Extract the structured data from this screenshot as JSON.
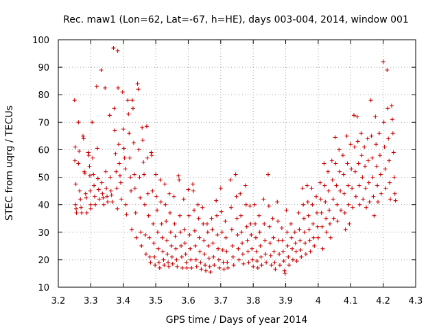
{
  "chart_data": {
    "type": "scatter",
    "title": "Rec. maw1 (Lon=62, Lat=-67, h=HE), days 003-004, 2014, window 001",
    "xlabel": "GPS time / Days of year 2014",
    "ylabel": "STEC from uqrg / TECUs",
    "xlim": [
      3.2,
      4.3
    ],
    "ylim": [
      10,
      100
    ],
    "xticks": [
      3.2,
      3.3,
      3.4,
      3.5,
      3.6,
      3.7,
      3.8,
      3.9,
      4.0,
      4.1,
      4.2,
      4.3
    ],
    "xtick_labels": [
      "3.2",
      "3.3",
      "3.4",
      "3.5",
      "3.6",
      "3.7",
      "3.8",
      "3.9",
      "4",
      "4.1",
      "4.2",
      "4.3"
    ],
    "yticks": [
      10,
      20,
      30,
      40,
      50,
      60,
      70,
      80,
      90,
      100
    ],
    "ytick_labels": [
      "10",
      "20",
      "30",
      "40",
      "50",
      "60",
      "70",
      "80",
      "90",
      "100"
    ],
    "grid": true,
    "marker": "plus",
    "color": "#cc0000",
    "points": [
      [
        3.25,
        78.0
      ],
      [
        3.252,
        61.0
      ],
      [
        3.251,
        56.0
      ],
      [
        3.254,
        47.5
      ],
      [
        3.253,
        40.0
      ],
      [
        3.255,
        38.5
      ],
      [
        3.256,
        37.0
      ],
      [
        3.262,
        70.0
      ],
      [
        3.264,
        59.5
      ],
      [
        3.262,
        55.0
      ],
      [
        3.266,
        45.0
      ],
      [
        3.268,
        42.0
      ],
      [
        3.27,
        39.0
      ],
      [
        3.272,
        37.0
      ],
      [
        3.276,
        65.0
      ],
      [
        3.278,
        64.0
      ],
      [
        3.28,
        52.0
      ],
      [
        3.282,
        51.5
      ],
      [
        3.284,
        44.0
      ],
      [
        3.286,
        42.5
      ],
      [
        3.288,
        37.0
      ],
      [
        3.292,
        59.0
      ],
      [
        3.294,
        58.0
      ],
      [
        3.296,
        54.0
      ],
      [
        3.297,
        50.5
      ],
      [
        3.298,
        45.0
      ],
      [
        3.3,
        40.0
      ],
      [
        3.3,
        38.5
      ],
      [
        3.304,
        70.0
      ],
      [
        3.306,
        57.0
      ],
      [
        3.308,
        51.0
      ],
      [
        3.31,
        47.0
      ],
      [
        3.312,
        43.0
      ],
      [
        3.314,
        40.0
      ],
      [
        3.318,
        83.0
      ],
      [
        3.32,
        60.5
      ],
      [
        3.322,
        49.5
      ],
      [
        3.324,
        45.5
      ],
      [
        3.326,
        42.0
      ],
      [
        3.332,
        89.0
      ],
      [
        3.334,
        48.0
      ],
      [
        3.336,
        44.0
      ],
      [
        3.338,
        42.5
      ],
      [
        3.34,
        40.0
      ],
      [
        3.344,
        82.5
      ],
      [
        3.346,
        52.0
      ],
      [
        3.348,
        46.0
      ],
      [
        3.35,
        43.0
      ],
      [
        3.352,
        41.0
      ],
      [
        3.358,
        72.5
      ],
      [
        3.36,
        50.0
      ],
      [
        3.362,
        45.0
      ],
      [
        3.364,
        43.5
      ],
      [
        3.366,
        41.0
      ],
      [
        3.37,
        97.0
      ],
      [
        3.372,
        75.0
      ],
      [
        3.374,
        67.0
      ],
      [
        3.376,
        58.5
      ],
      [
        3.378,
        52.0
      ],
      [
        3.38,
        46.0
      ],
      [
        3.382,
        38.5
      ],
      [
        3.383,
        96.0
      ],
      [
        3.384,
        82.5
      ],
      [
        3.386,
        62.0
      ],
      [
        3.388,
        55.0
      ],
      [
        3.39,
        50.5
      ],
      [
        3.392,
        48.0
      ],
      [
        3.394,
        42.0
      ],
      [
        3.398,
        81.0
      ],
      [
        3.4,
        67.5
      ],
      [
        3.402,
        60.5
      ],
      [
        3.404,
        57.0
      ],
      [
        3.406,
        53.0
      ],
      [
        3.408,
        40.0
      ],
      [
        3.41,
        36.5
      ],
      [
        3.414,
        78.0
      ],
      [
        3.416,
        73.0
      ],
      [
        3.418,
        66.0
      ],
      [
        3.42,
        57.0
      ],
      [
        3.422,
        50.0
      ],
      [
        3.424,
        45.0
      ],
      [
        3.426,
        31.0
      ],
      [
        3.428,
        78.0
      ],
      [
        3.43,
        75.0
      ],
      [
        3.432,
        62.5
      ],
      [
        3.434,
        51.0
      ],
      [
        3.436,
        46.0
      ],
      [
        3.438,
        37.0
      ],
      [
        3.44,
        28.0
      ],
      [
        3.444,
        84.0
      ],
      [
        3.446,
        82.0
      ],
      [
        3.448,
        60.0
      ],
      [
        3.45,
        50.0
      ],
      [
        3.452,
        42.5
      ],
      [
        3.454,
        30.0
      ],
      [
        3.456,
        25.0
      ],
      [
        3.458,
        68.0
      ],
      [
        3.46,
        63.5
      ],
      [
        3.462,
        55.5
      ],
      [
        3.464,
        51.0
      ],
      [
        3.466,
        40.0
      ],
      [
        3.468,
        29.0
      ],
      [
        3.47,
        22.0
      ],
      [
        3.472,
        68.5
      ],
      [
        3.474,
        57.0
      ],
      [
        3.476,
        44.0
      ],
      [
        3.478,
        36.0
      ],
      [
        3.48,
        28.0
      ],
      [
        3.482,
        21.0
      ],
      [
        3.484,
        19.0
      ],
      [
        3.486,
        59.0
      ],
      [
        3.488,
        58.0
      ],
      [
        3.49,
        45.0
      ],
      [
        3.492,
        33.0
      ],
      [
        3.494,
        26.0
      ],
      [
        3.496,
        21.0
      ],
      [
        3.498,
        18.0
      ],
      [
        3.5,
        51.0
      ],
      [
        3.502,
        43.0
      ],
      [
        3.504,
        38.0
      ],
      [
        3.506,
        30.0
      ],
      [
        3.508,
        24.0
      ],
      [
        3.51,
        19.0
      ],
      [
        3.512,
        17.0
      ],
      [
        3.514,
        49.0
      ],
      [
        3.516,
        41.0
      ],
      [
        3.518,
        33.0
      ],
      [
        3.52,
        28.0
      ],
      [
        3.522,
        23.0
      ],
      [
        3.524,
        20.0
      ],
      [
        3.526,
        18.0
      ],
      [
        3.528,
        47.5
      ],
      [
        3.53,
        40.0
      ],
      [
        3.532,
        34.0
      ],
      [
        3.534,
        27.0
      ],
      [
        3.536,
        22.0
      ],
      [
        3.538,
        19.0
      ],
      [
        3.54,
        17.5
      ],
      [
        3.542,
        44.0
      ],
      [
        3.544,
        37.0
      ],
      [
        3.546,
        30.0
      ],
      [
        3.548,
        25.0
      ],
      [
        3.55,
        21.0
      ],
      [
        3.552,
        18.5
      ],
      [
        3.556,
        43.0
      ],
      [
        3.558,
        33.0
      ],
      [
        3.56,
        28.5
      ],
      [
        3.562,
        24.0
      ],
      [
        3.564,
        20.0
      ],
      [
        3.566,
        17.5
      ],
      [
        3.57,
        50.5
      ],
      [
        3.572,
        49.0
      ],
      [
        3.574,
        36.0
      ],
      [
        3.576,
        30.0
      ],
      [
        3.578,
        25.0
      ],
      [
        3.58,
        21.0
      ],
      [
        3.582,
        17.0
      ],
      [
        3.586,
        42.0
      ],
      [
        3.588,
        31.0
      ],
      [
        3.59,
        26.0
      ],
      [
        3.592,
        22.0
      ],
      [
        3.594,
        19.0
      ],
      [
        3.596,
        17.0
      ],
      [
        3.6,
        45.5
      ],
      [
        3.602,
        36.0
      ],
      [
        3.604,
        29.0
      ],
      [
        3.606,
        24.0
      ],
      [
        3.608,
        20.0
      ],
      [
        3.61,
        17.0
      ],
      [
        3.614,
        47.5
      ],
      [
        3.616,
        45.0
      ],
      [
        3.618,
        38.0
      ],
      [
        3.62,
        30.5
      ],
      [
        3.622,
        25.0
      ],
      [
        3.624,
        20.0
      ],
      [
        3.626,
        17.5
      ],
      [
        3.63,
        40.0
      ],
      [
        3.632,
        35.0
      ],
      [
        3.634,
        28.0
      ],
      [
        3.636,
        23.0
      ],
      [
        3.638,
        19.0
      ],
      [
        3.64,
        16.5
      ],
      [
        3.644,
        39.0
      ],
      [
        3.646,
        33.0
      ],
      [
        3.648,
        27.0
      ],
      [
        3.65,
        22.0
      ],
      [
        3.652,
        18.0
      ],
      [
        3.654,
        16.0
      ],
      [
        3.658,
        33.0
      ],
      [
        3.66,
        30.0
      ],
      [
        3.662,
        25.0
      ],
      [
        3.664,
        20.5
      ],
      [
        3.666,
        17.5
      ],
      [
        3.668,
        15.5
      ],
      [
        3.672,
        35.0
      ],
      [
        3.674,
        31.0
      ],
      [
        3.676,
        26.0
      ],
      [
        3.678,
        21.0
      ],
      [
        3.68,
        18.0
      ],
      [
        3.686,
        41.5
      ],
      [
        3.688,
        36.0
      ],
      [
        3.69,
        29.0
      ],
      [
        3.692,
        24.0
      ],
      [
        3.694,
        20.0
      ],
      [
        3.696,
        17.0
      ],
      [
        3.7,
        46.0
      ],
      [
        3.702,
        37.5
      ],
      [
        3.704,
        30.0
      ],
      [
        3.706,
        23.5
      ],
      [
        3.708,
        19.0
      ],
      [
        3.71,
        16.5
      ],
      [
        3.714,
        34.0
      ],
      [
        3.716,
        28.0
      ],
      [
        3.718,
        23.0
      ],
      [
        3.72,
        19.0
      ],
      [
        3.722,
        17.0
      ],
      [
        3.73,
        49.0
      ],
      [
        3.732,
        39.0
      ],
      [
        3.734,
        31.0
      ],
      [
        3.736,
        25.0
      ],
      [
        3.738,
        21.0
      ],
      [
        3.74,
        18.0
      ],
      [
        3.746,
        51.0
      ],
      [
        3.748,
        43.0
      ],
      [
        3.75,
        35.0
      ],
      [
        3.752,
        29.0
      ],
      [
        3.754,
        24.0
      ],
      [
        3.756,
        20.0
      ],
      [
        3.76,
        44.0
      ],
      [
        3.762,
        36.0
      ],
      [
        3.764,
        30.0
      ],
      [
        3.766,
        26.0
      ],
      [
        3.768,
        22.0
      ],
      [
        3.77,
        18.5
      ],
      [
        3.776,
        47.0
      ],
      [
        3.778,
        40.0
      ],
      [
        3.78,
        32.0
      ],
      [
        3.782,
        27.0
      ],
      [
        3.784,
        23.0
      ],
      [
        3.786,
        19.0
      ],
      [
        3.79,
        39.5
      ],
      [
        3.792,
        33.0
      ],
      [
        3.794,
        29.0
      ],
      [
        3.796,
        24.0
      ],
      [
        3.798,
        20.0
      ],
      [
        3.8,
        17.5
      ],
      [
        3.804,
        40.0
      ],
      [
        3.806,
        33.0
      ],
      [
        3.808,
        28.0
      ],
      [
        3.81,
        23.0
      ],
      [
        3.812,
        19.5
      ],
      [
        3.814,
        17.0
      ],
      [
        3.818,
        36.0
      ],
      [
        3.82,
        30.0
      ],
      [
        3.822,
        25.0
      ],
      [
        3.824,
        21.0
      ],
      [
        3.826,
        18.0
      ],
      [
        3.832,
        42.0
      ],
      [
        3.834,
        33.0
      ],
      [
        3.836,
        27.0
      ],
      [
        3.838,
        22.0
      ],
      [
        3.84,
        19.0
      ],
      [
        3.846,
        51.0
      ],
      [
        3.848,
        39.5
      ],
      [
        3.85,
        32.0
      ],
      [
        3.852,
        26.0
      ],
      [
        3.854,
        21.5
      ],
      [
        3.856,
        18.0
      ],
      [
        3.86,
        35.0
      ],
      [
        3.862,
        28.0
      ],
      [
        3.864,
        23.0
      ],
      [
        3.866,
        19.0
      ],
      [
        3.868,
        16.5
      ],
      [
        3.874,
        41.0
      ],
      [
        3.876,
        34.0
      ],
      [
        3.878,
        27.0
      ],
      [
        3.88,
        22.0
      ],
      [
        3.882,
        18.0
      ],
      [
        3.888,
        31.5
      ],
      [
        3.89,
        27.0
      ],
      [
        3.892,
        23.0
      ],
      [
        3.894,
        19.5
      ],
      [
        3.896,
        16.0
      ],
      [
        3.898,
        15.0
      ],
      [
        3.902,
        38.0
      ],
      [
        3.904,
        30.0
      ],
      [
        3.906,
        25.0
      ],
      [
        3.908,
        21.0
      ],
      [
        3.91,
        18.0
      ],
      [
        3.916,
        33.0
      ],
      [
        3.918,
        28.0
      ],
      [
        3.92,
        24.0
      ],
      [
        3.922,
        20.0
      ],
      [
        3.928,
        30.0
      ],
      [
        3.93,
        26.0
      ],
      [
        3.932,
        23.0
      ],
      [
        3.934,
        19.5
      ],
      [
        3.94,
        37.0
      ],
      [
        3.942,
        31.0
      ],
      [
        3.944,
        27.0
      ],
      [
        3.946,
        23.5
      ],
      [
        3.948,
        21.0
      ],
      [
        3.952,
        46.0
      ],
      [
        3.954,
        40.0
      ],
      [
        3.956,
        35.0
      ],
      [
        3.958,
        30.0
      ],
      [
        3.96,
        26.0
      ],
      [
        3.962,
        22.0
      ],
      [
        3.966,
        47.0
      ],
      [
        3.968,
        41.0
      ],
      [
        3.97,
        36.0
      ],
      [
        3.972,
        31.0
      ],
      [
        3.974,
        27.0
      ],
      [
        3.976,
        23.0
      ],
      [
        3.98,
        46.0
      ],
      [
        3.982,
        40.0
      ],
      [
        3.984,
        33.0
      ],
      [
        3.986,
        28.0
      ],
      [
        3.988,
        25.0
      ],
      [
        3.994,
        43.0
      ],
      [
        3.996,
        37.0
      ],
      [
        3.998,
        32.0
      ],
      [
        4.0,
        28.0
      ],
      [
        4.006,
        48.0
      ],
      [
        4.008,
        42.0
      ],
      [
        4.01,
        37.0
      ],
      [
        4.012,
        32.0
      ],
      [
        4.014,
        24.0
      ],
      [
        4.018,
        55.0
      ],
      [
        4.02,
        47.0
      ],
      [
        4.022,
        41.0
      ],
      [
        4.024,
        35.0
      ],
      [
        4.026,
        30.0
      ],
      [
        4.03,
        52.0
      ],
      [
        4.032,
        45.0
      ],
      [
        4.034,
        38.0
      ],
      [
        4.036,
        33.0
      ],
      [
        4.038,
        28.0
      ],
      [
        4.042,
        56.0
      ],
      [
        4.044,
        49.0
      ],
      [
        4.046,
        42.0
      ],
      [
        4.048,
        35.0
      ],
      [
        4.052,
        64.5
      ],
      [
        4.054,
        55.0
      ],
      [
        4.056,
        47.0
      ],
      [
        4.058,
        40.0
      ],
      [
        4.06,
        34.0
      ],
      [
        4.064,
        60.0
      ],
      [
        4.066,
        52.0
      ],
      [
        4.068,
        45.0
      ],
      [
        4.07,
        38.0
      ],
      [
        4.076,
        58.0
      ],
      [
        4.078,
        51.0
      ],
      [
        4.08,
        44.0
      ],
      [
        4.082,
        37.0
      ],
      [
        4.084,
        31.0
      ],
      [
        4.088,
        65.0
      ],
      [
        4.09,
        55.0
      ],
      [
        4.092,
        47.0
      ],
      [
        4.094,
        40.0
      ],
      [
        4.096,
        33.0
      ],
      [
        4.1,
        62.0
      ],
      [
        4.102,
        53.0
      ],
      [
        4.104,
        46.0
      ],
      [
        4.106,
        39.0
      ],
      [
        4.11,
        72.5
      ],
      [
        4.112,
        61.0
      ],
      [
        4.114,
        52.0
      ],
      [
        4.116,
        43.0
      ],
      [
        4.12,
        72.0
      ],
      [
        4.122,
        63.0
      ],
      [
        4.124,
        55.0
      ],
      [
        4.126,
        47.0
      ],
      [
        4.128,
        40.0
      ],
      [
        4.132,
        66.0
      ],
      [
        4.134,
        58.0
      ],
      [
        4.136,
        50.0
      ],
      [
        4.138,
        42.0
      ],
      [
        4.142,
        61.0
      ],
      [
        4.144,
        54.0
      ],
      [
        4.146,
        46.0
      ],
      [
        4.148,
        39.0
      ],
      [
        4.152,
        64.0
      ],
      [
        4.154,
        56.0
      ],
      [
        4.156,
        48.0
      ],
      [
        4.158,
        41.0
      ],
      [
        4.162,
        78.0
      ],
      [
        4.164,
        65.0
      ],
      [
        4.166,
        57.0
      ],
      [
        4.168,
        50.0
      ],
      [
        4.17,
        43.0
      ],
      [
        4.172,
        36.0
      ],
      [
        4.176,
        72.0
      ],
      [
        4.178,
        62.0
      ],
      [
        4.18,
        54.0
      ],
      [
        4.182,
        47.0
      ],
      [
        4.184,
        41.0
      ],
      [
        4.188,
        66.0
      ],
      [
        4.19,
        58.0
      ],
      [
        4.192,
        51.0
      ],
      [
        4.194,
        44.0
      ],
      [
        4.2,
        92.0
      ],
      [
        4.202,
        70.0
      ],
      [
        4.204,
        61.0
      ],
      [
        4.206,
        53.0
      ],
      [
        4.208,
        46.0
      ],
      [
        4.212,
        89.0
      ],
      [
        4.214,
        75.0
      ],
      [
        4.216,
        64.0
      ],
      [
        4.218,
        56.0
      ],
      [
        4.22,
        48.0
      ],
      [
        4.222,
        42.0
      ],
      [
        4.226,
        76.0
      ],
      [
        4.228,
        71.0
      ],
      [
        4.23,
        66.0
      ],
      [
        4.232,
        59.0
      ],
      [
        4.234,
        50.0
      ],
      [
        4.236,
        44.0
      ],
      [
        4.238,
        41.5
      ]
    ]
  }
}
